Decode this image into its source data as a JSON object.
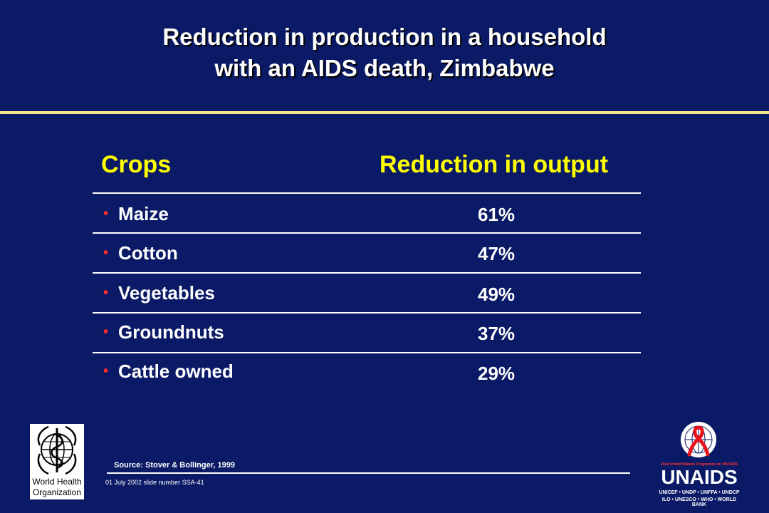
{
  "title": {
    "line1": "Reduction in production in a household",
    "line2": "with an AIDS death,  Zimbabwe"
  },
  "table": {
    "headers": {
      "crops": "Crops",
      "reduction": "Reduction in output"
    },
    "rows": [
      {
        "crop": "Maize",
        "reduction": "61%"
      },
      {
        "crop": "Cotton",
        "reduction": "47%"
      },
      {
        "crop": "Vegetables",
        "reduction": "49%"
      },
      {
        "crop": "Groundnuts",
        "reduction": "37%"
      },
      {
        "crop": "Cattle owned",
        "reduction": "29%"
      }
    ],
    "bullet": "•"
  },
  "source": "Source: Stover & Bollinger, 1999",
  "footer": "01 July 2002 slide number SSA-41",
  "logos": {
    "who": {
      "line1": "World Health",
      "line2": "Organization"
    },
    "unaids": {
      "tagline": "Joint United Nations Programme on HIV/AIDS",
      "name": "UNAIDS",
      "sub1": "UNICEF • UNDP • UNFPA • UNDCP",
      "sub2": "ILO • UNESCO • WHO • WORLD BANK"
    }
  },
  "colors": {
    "background": "#0b1a66",
    "header_text": "#ffff00",
    "bullet": "#ff2a2a",
    "title_rule": "#f2e38a"
  }
}
